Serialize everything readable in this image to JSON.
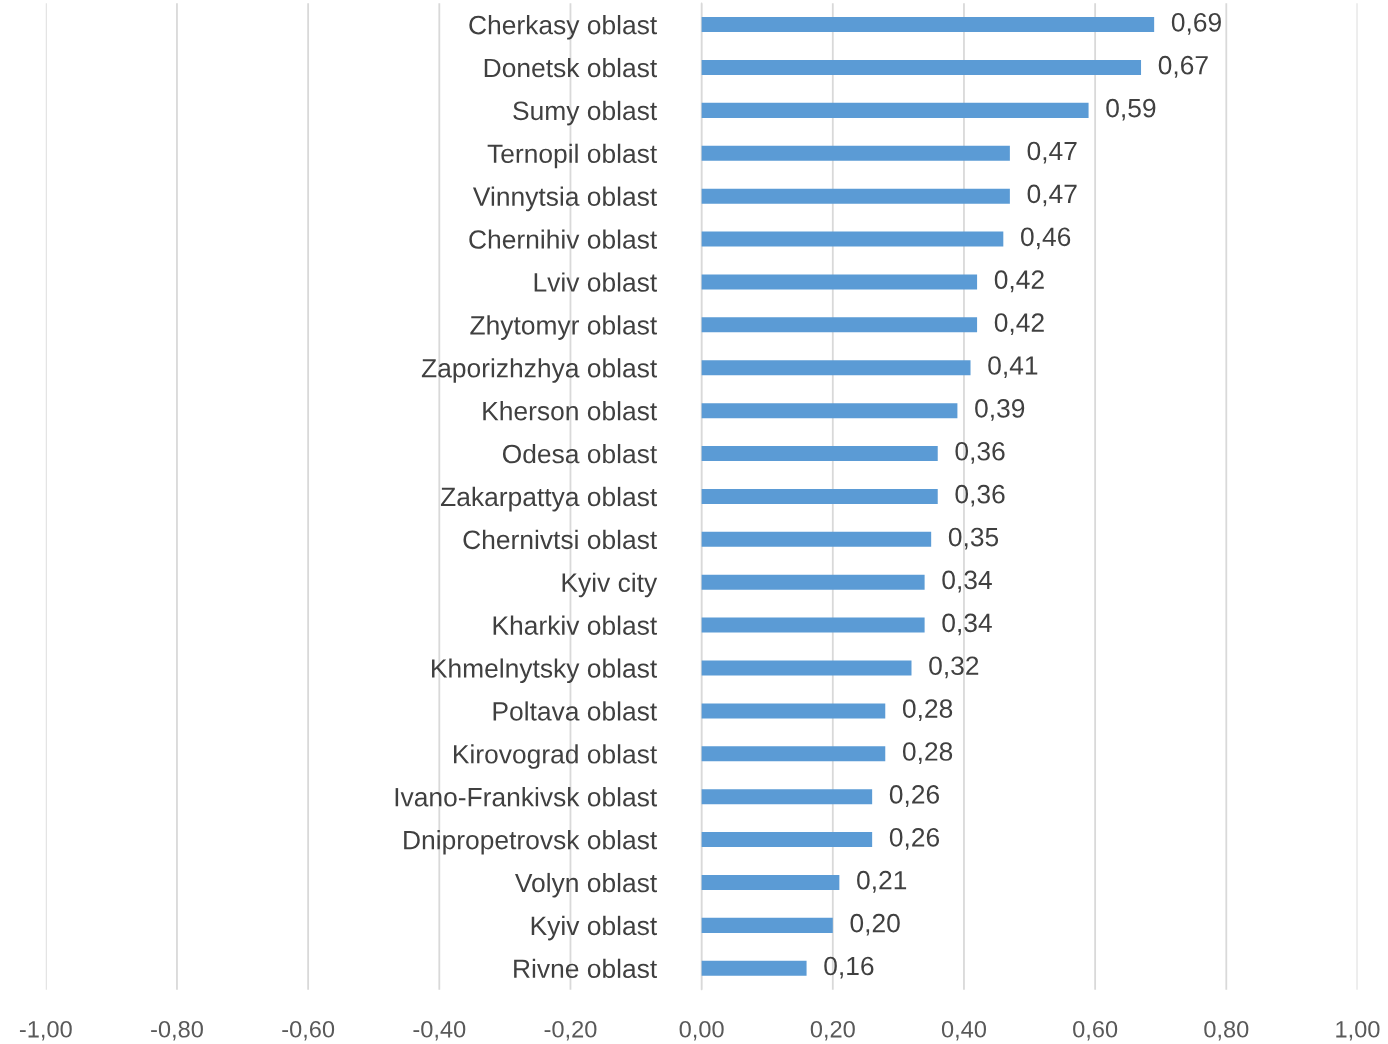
{
  "chart_data": {
    "type": "bar",
    "orientation": "horizontal",
    "categories": [
      "Cherkasy oblast",
      "Donetsk oblast",
      "Sumy oblast",
      "Ternopil oblast",
      "Vinnytsia oblast",
      "Chernihiv oblast",
      "Lviv oblast",
      "Zhytomyr oblast",
      "Zaporizhzhya oblast",
      "Kherson oblast",
      "Odesa oblast",
      "Zakarpattya oblast",
      "Chernivtsi oblast",
      "Kyiv city",
      "Kharkiv oblast",
      "Khmelnytsky oblast",
      "Poltava oblast",
      "Kirovograd oblast",
      "Ivano-Frankivsk oblast",
      "Dnipropetrovsk oblast",
      "Volyn oblast",
      "Kyiv oblast",
      "Rivne oblast"
    ],
    "values": [
      0.69,
      0.67,
      0.59,
      0.47,
      0.47,
      0.46,
      0.42,
      0.42,
      0.41,
      0.39,
      0.36,
      0.36,
      0.35,
      0.34,
      0.34,
      0.32,
      0.28,
      0.28,
      0.26,
      0.26,
      0.21,
      0.2,
      0.16
    ],
    "value_labels": [
      "0,69",
      "0,67",
      "0,59",
      "0,47",
      "0,47",
      "0,46",
      "0,42",
      "0,42",
      "0,41",
      "0,39",
      "0,36",
      "0,36",
      "0,35",
      "0,34",
      "0,34",
      "0,32",
      "0,28",
      "0,28",
      "0,26",
      "0,26",
      "0,21",
      "0,20",
      "0,16"
    ],
    "color": "#5b9bd5",
    "xlim": [
      -1,
      1
    ],
    "xticks": [
      {
        "value": -1,
        "label": "-1,00"
      },
      {
        "value": -0.8,
        "label": "-0,80"
      },
      {
        "value": -0.6,
        "label": "-0,60"
      },
      {
        "value": -0.4,
        "label": "-0,40"
      },
      {
        "value": -0.2,
        "label": "-0,20"
      },
      {
        "value": 0,
        "label": "0,00"
      },
      {
        "value": 0.2,
        "label": "0,20"
      },
      {
        "value": 0.4,
        "label": "0,40"
      },
      {
        "value": 0.6,
        "label": "0,60"
      },
      {
        "value": 0.8,
        "label": "0,80"
      },
      {
        "value": 1,
        "label": "1,00"
      }
    ],
    "grid": "x"
  }
}
